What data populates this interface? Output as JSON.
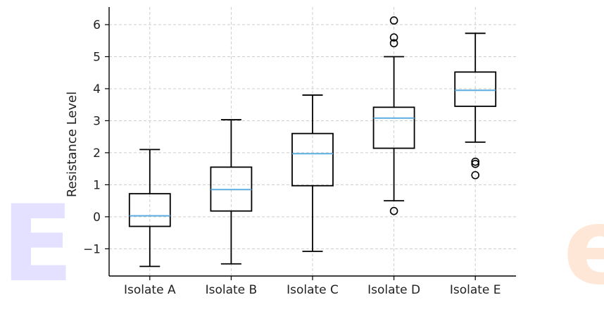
{
  "chart_data": {
    "type": "box",
    "title": "",
    "xlabel": "",
    "ylabel": "Resistance Level",
    "ylim": [
      -1.85,
      6.55
    ],
    "yticks": [
      -1,
      0,
      1,
      2,
      3,
      4,
      5,
      6
    ],
    "ytick_labels": [
      "−1",
      "0",
      "1",
      "2",
      "3",
      "4",
      "5",
      "6"
    ],
    "grid": true,
    "categories": [
      "Isolate A",
      "Isolate B",
      "Isolate C",
      "Isolate D",
      "Isolate E"
    ],
    "boxes": [
      {
        "category": "Isolate A",
        "whisker_low": -1.55,
        "q1": -0.3,
        "median": 0.03,
        "q3": 0.72,
        "whisker_high": 2.1,
        "outliers": []
      },
      {
        "category": "Isolate B",
        "whisker_low": -1.47,
        "q1": 0.18,
        "median": 0.85,
        "q3": 1.55,
        "whisker_high": 3.03,
        "outliers": []
      },
      {
        "category": "Isolate C",
        "whisker_low": -1.08,
        "q1": 0.97,
        "median": 1.97,
        "q3": 2.6,
        "whisker_high": 3.8,
        "outliers": []
      },
      {
        "category": "Isolate D",
        "whisker_low": 0.5,
        "q1": 2.14,
        "median": 3.08,
        "q3": 3.42,
        "whisker_high": 5.0,
        "outliers": [
          0.18,
          5.42,
          5.6,
          6.13
        ]
      },
      {
        "category": "Isolate E",
        "whisker_low": 2.33,
        "q1": 3.45,
        "median": 3.95,
        "q3": 4.52,
        "whisker_high": 5.73,
        "outliers": [
          1.3,
          1.65,
          1.72
        ]
      }
    ],
    "colors": {
      "box": "#000000",
      "median": "#5dade2",
      "grid": "#cccccc"
    }
  }
}
